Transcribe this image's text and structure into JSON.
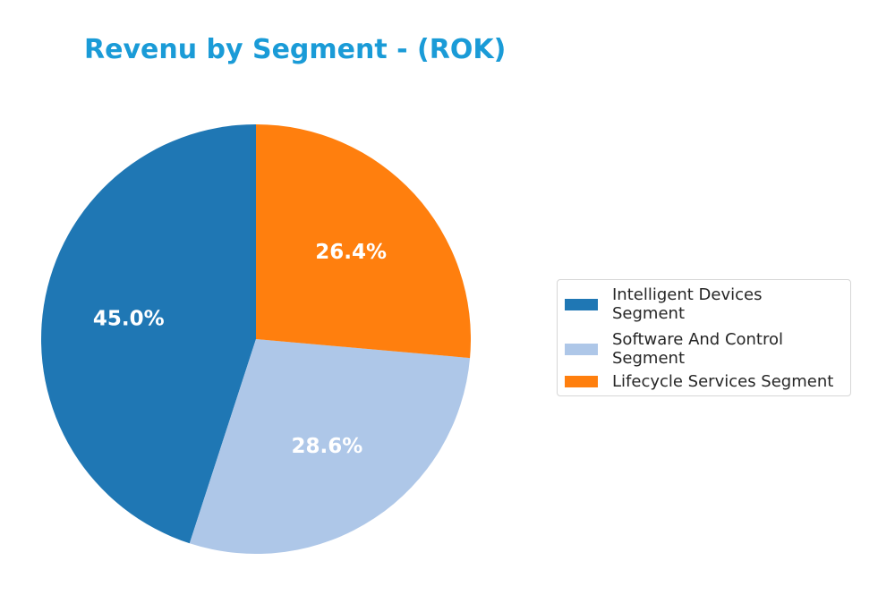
{
  "chart_data": {
    "type": "pie",
    "title": "Revenu by Segment - (ROK)",
    "slices": [
      {
        "name": "Intelligent Devices Segment",
        "value": 45.0,
        "label": "45.0%",
        "color": "#1f77b4",
        "legend_label": "Intelligent Devices\nSegment"
      },
      {
        "name": "Software And Control Segment",
        "value": 28.6,
        "label": "28.6%",
        "color": "#aec7e8",
        "legend_label": "Software And Control\nSegment"
      },
      {
        "name": "Lifecycle Services Segment",
        "value": 26.4,
        "label": "26.4%",
        "color": "#ff7f0e",
        "legend_label": "Lifecycle Services Segment"
      }
    ],
    "start_angle_deg": 90,
    "direction": "counterclockwise",
    "legend_position": "right"
  }
}
